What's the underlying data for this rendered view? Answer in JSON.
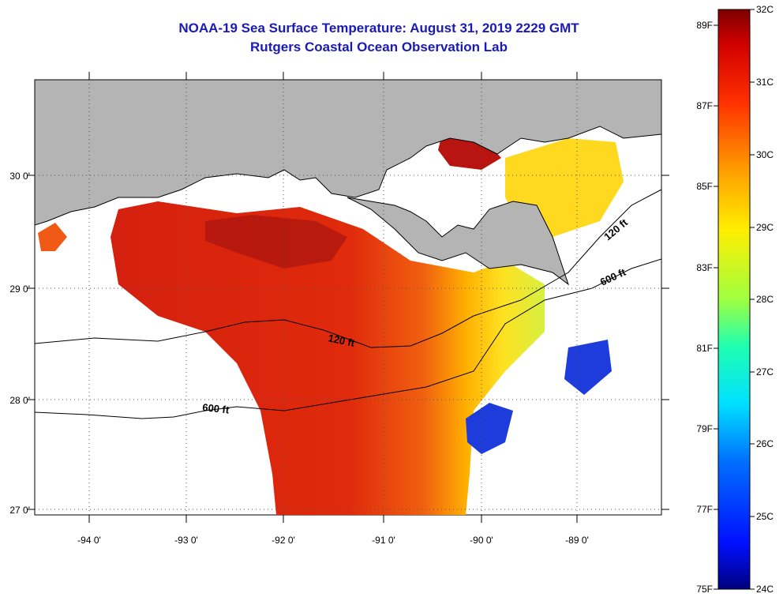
{
  "header": {
    "title": "NOAA-19 Sea Surface Temperature:  August 31, 2019 2229 GMT",
    "subtitle": "Rutgers Coastal Ocean Observation Lab"
  },
  "map": {
    "lon_labels": [
      "-94 0'",
      "-93 0'",
      "-92 0'",
      "-91 0'",
      "-90 0'",
      "-89 0'"
    ],
    "lat_labels": [
      "30 0'",
      "29 0'",
      "28 0'",
      "27 0'"
    ],
    "contour_labels": {
      "c120_west": "120 ft",
      "c600_west": "600 ft",
      "c120_east": "120 ft",
      "c600_east": "600 ft"
    }
  },
  "colorbar": {
    "celsius_labels": [
      "32C",
      "31C",
      "30C",
      "29C",
      "28C",
      "27C",
      "26C",
      "25C",
      "24C"
    ],
    "fahrenheit_labels": [
      "89F",
      "87F",
      "85F",
      "83F",
      "81F",
      "79F",
      "77F",
      "75F"
    ],
    "range_celsius": [
      24,
      32
    ]
  },
  "colors": {
    "land": "#b4b4b4",
    "title": "#1a1ab4",
    "warm": "#c81e14",
    "cool": "#1e3cdc"
  }
}
